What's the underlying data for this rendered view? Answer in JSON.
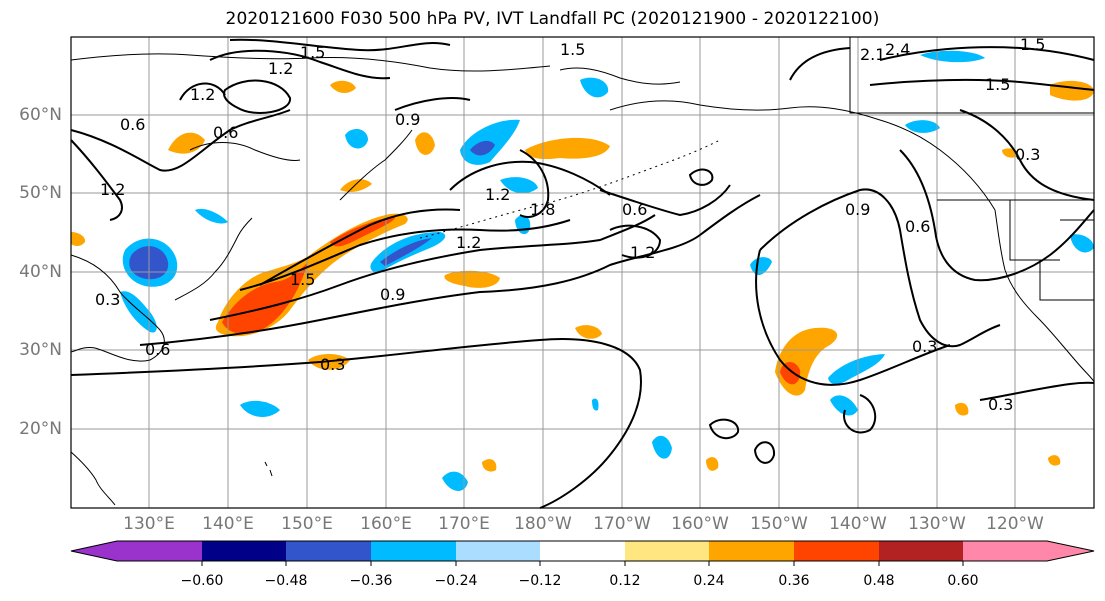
{
  "title": "2020121600 F030 500 hPa PV, IVT Landfall PC (2020121900 - 2020122100)",
  "lat_labels": [
    "20°N",
    "30°N",
    "40°N",
    "50°N",
    "60°N"
  ],
  "lon_labels": [
    "130°E",
    "140°E",
    "150°E",
    "160°E",
    "170°E",
    "180°W",
    "170°W",
    "160°W",
    "150°W",
    "140°W",
    "130°W",
    "120°W"
  ],
  "contour_labels": [
    "1.5",
    "1.2",
    "1.2",
    "0.6",
    "0.6",
    "1.2",
    "0.9",
    "1.5",
    "1.2",
    "1.8",
    "0.6",
    "1.2",
    "0.3",
    "0.9",
    "1.2",
    "0.9",
    "1.5",
    "0.6",
    "0.3",
    "0.6",
    "0.3",
    "0.3",
    "0.3",
    "1.5",
    "2.1",
    "1.5",
    "2.4"
  ],
  "colorbar": {
    "colors": [
      "#9933cc",
      "#000088",
      "#3355cc",
      "#00bbff",
      "#aaddff",
      "#ffffff",
      "#ffe680",
      "#ffa500",
      "#ff4400",
      "#b22222",
      "#ff88aa"
    ],
    "tick_labels": [
      "−0.60",
      "−0.48",
      "−0.36",
      "−0.24",
      "−0.12",
      "0.12",
      "0.24",
      "0.36",
      "0.48",
      "0.60"
    ]
  },
  "fill_colors": {
    "neg_light": "#00bbff",
    "neg_mid": "#3355cc",
    "pos_light": "#ffa500",
    "pos_mid": "#ff4400",
    "pos_pale": "#ffe680",
    "pos_dark": "#b22222"
  }
}
